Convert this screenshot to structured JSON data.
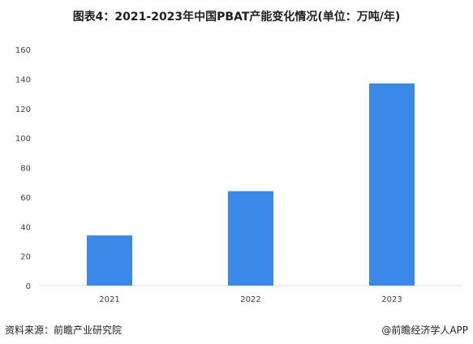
{
  "title": "图表4：2021-2023年中国PBAT产能变化情况(单位：万吨/年)",
  "footer": {
    "source": "资料来源：前瞻产业研究院",
    "credit": "@前瞻经济学人APP"
  },
  "chart_data": {
    "type": "bar",
    "categories": [
      "2021",
      "2022",
      "2023"
    ],
    "values": [
      34,
      64,
      137
    ],
    "title": "图表4：2021-2023年中国PBAT产能变化情况(单位：万吨/年)",
    "xlabel": "",
    "ylabel": "",
    "ylim": [
      0,
      160
    ],
    "yticks": [
      0,
      20,
      40,
      60,
      80,
      100,
      120,
      140,
      160
    ],
    "grid": false,
    "bar_color": "#3a88e8",
    "axis_color": "#d9d9d9"
  }
}
